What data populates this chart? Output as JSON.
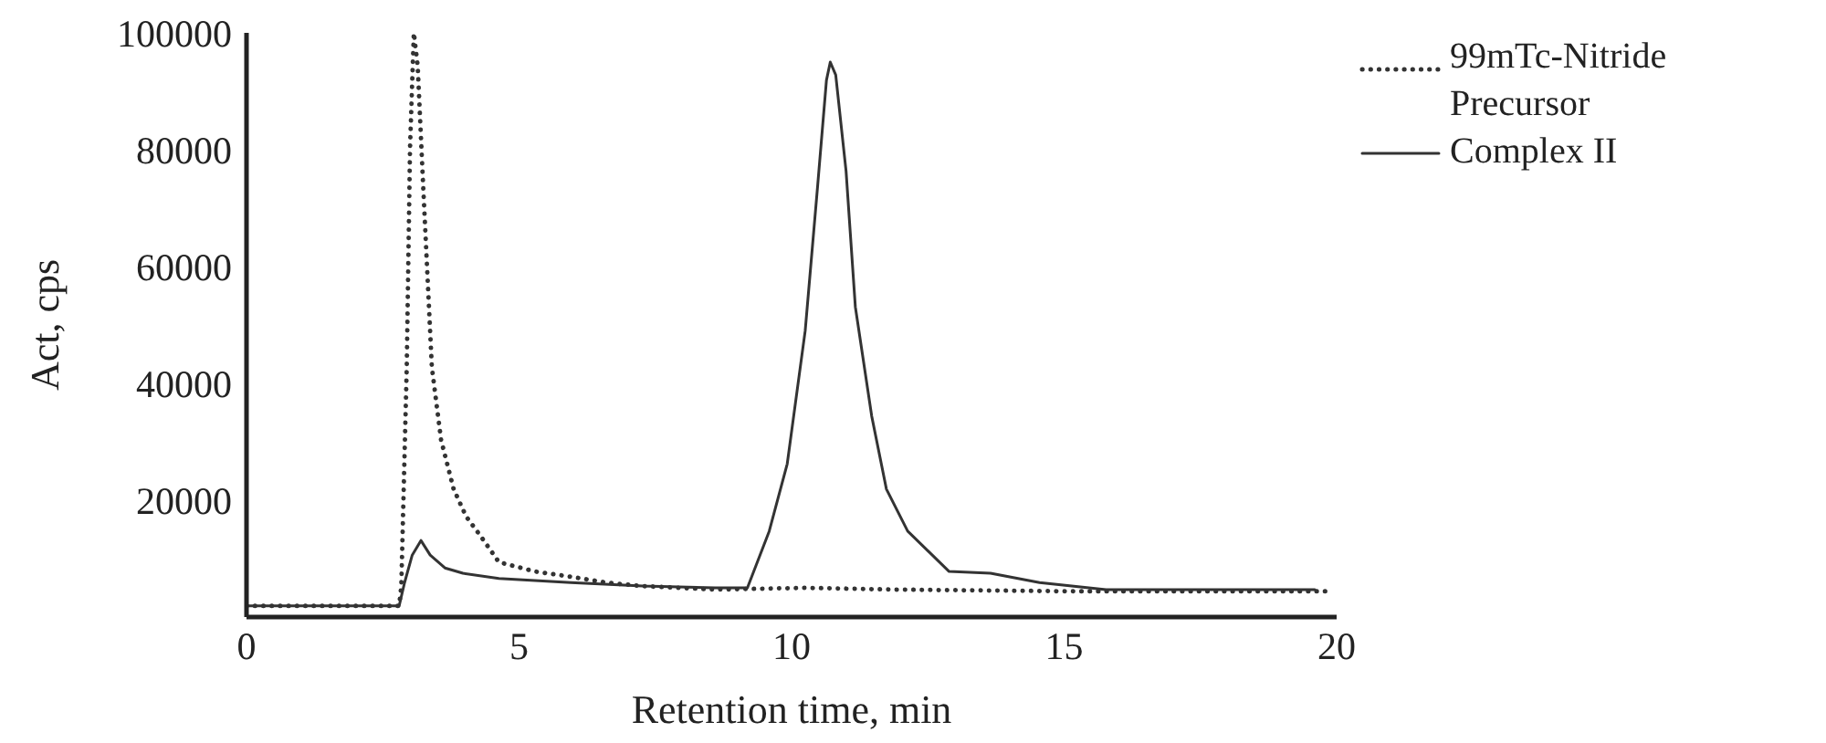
{
  "chart_data": {
    "type": "line",
    "xlabel": "Retention time, min",
    "ylabel": "Act, cps",
    "xlim": [
      0,
      20
    ],
    "xticks": [
      0,
      5,
      10,
      15,
      20
    ],
    "ylim": [
      0,
      100000
    ],
    "yticks": [
      20000,
      40000,
      60000,
      80000,
      100000
    ],
    "grid": false,
    "legend": "top right",
    "marker": "none",
    "series": [
      {
        "name": "99mTc-Nitride Precursor",
        "color": "#333333",
        "line_style": "dotted",
        "x": [
          0,
          2.8,
          2.84,
          2.94,
          3.0,
          3.07,
          3.14,
          3.24,
          3.4,
          3.57,
          3.8,
          4.03,
          4.3,
          4.63,
          5.29,
          5.95,
          6.6,
          7.27,
          8.6,
          10.25,
          11.9,
          15.2,
          19.8
        ],
        "values": [
          1900,
          1900,
          5300,
          42800,
          80300,
          100000,
          94400,
          74000,
          42800,
          30300,
          21900,
          17200,
          13800,
          9400,
          7800,
          6900,
          5900,
          5300,
          4700,
          5000,
          4700,
          4400,
          4400
        ]
      },
      {
        "name": "Complex II",
        "color": "#333333",
        "line_style": "solid",
        "x": [
          0,
          2.8,
          2.9,
          3.04,
          3.2,
          3.37,
          3.64,
          3.97,
          4.63,
          5.95,
          7.27,
          8.6,
          9.19,
          9.59,
          9.92,
          10.25,
          10.48,
          10.64,
          10.71,
          10.81,
          11.0,
          11.17,
          11.47,
          11.74,
          12.13,
          12.89,
          13.65,
          14.55,
          15.77,
          19.6
        ],
        "values": [
          1900,
          1900,
          5900,
          10600,
          13100,
          10600,
          8400,
          7500,
          6600,
          5900,
          5300,
          5000,
          5000,
          14700,
          26200,
          49000,
          74000,
          91900,
          95000,
          92800,
          76300,
          53100,
          34400,
          21900,
          14700,
          7800,
          7500,
          5900,
          4700,
          4700
        ]
      }
    ]
  }
}
